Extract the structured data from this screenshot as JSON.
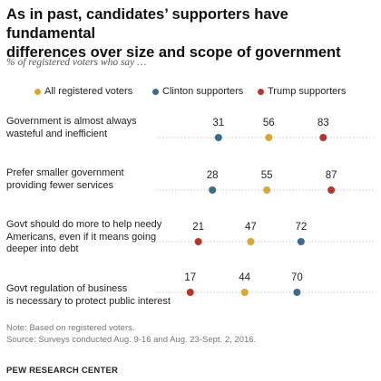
{
  "title_line1": "As in past, candidates’ supporters have fundamental",
  "title_line2": "differences over size and scope of government",
  "subtitle": "% of registered voters who say …",
  "note": "Note: Based on registered voters.",
  "source": "Source: Surveys conducted Aug. 9-16 and Aug. 23-Sept. 2, 2016.",
  "organization": "PEW RESEARCH CENTER",
  "colors": {
    "all": "#d8a631",
    "clinton": "#3e6b8a",
    "trump": "#b8352c",
    "axis": "#cccccc"
  },
  "chart_data": {
    "type": "dot",
    "title": "As in past, candidates’ supporters have fundamental differences over size and scope of government",
    "subtitle": "% of registered voters who say …",
    "xlim": [
      0,
      100
    ],
    "legend": "top",
    "series": [
      {
        "name": "All registered voters",
        "key": "all"
      },
      {
        "name": "Clinton supporters",
        "key": "clinton"
      },
      {
        "name": "Trump supporters",
        "key": "trump"
      }
    ],
    "categories": [
      {
        "label_lines": [
          "Government is almost always",
          "wasteful and inefficient"
        ],
        "values": {
          "all": 56,
          "clinton": 31,
          "trump": 83
        }
      },
      {
        "label_lines": [
          "Prefer smaller government",
          "providing fewer services"
        ],
        "values": {
          "all": 55,
          "clinton": 28,
          "trump": 87
        }
      },
      {
        "label_lines": [
          "Govt should do more to help needy",
          "Americans, even if it means going",
          "deeper into debt"
        ],
        "values": {
          "all": 47,
          "clinton": 72,
          "trump": 21
        }
      },
      {
        "label_lines": [
          "Govt regulation of business",
          "is necessary to protect public interest"
        ],
        "values": {
          "all": 44,
          "clinton": 70,
          "trump": 17
        }
      }
    ]
  }
}
